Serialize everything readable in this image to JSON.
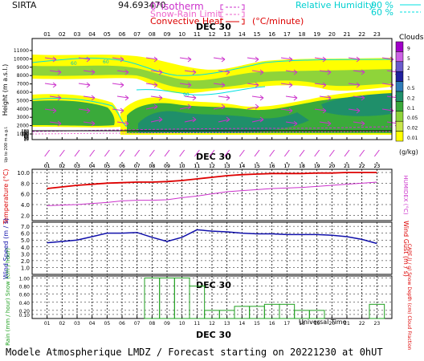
{
  "header": {
    "station": "SIRTA",
    "coords": "94.693470",
    "isotherm_label": "0°isotherm",
    "snow_rain_label": "Snow-Rain Limit",
    "convective_label": "Convective Heat",
    "convective_unit": "(°C/minute)",
    "rh_label": "Relative Humidity",
    "rh_90": "90 %",
    "rh_60": "60 %"
  },
  "footer": {
    "universal_time": "Universal Time",
    "model": "Modele Atmospherique LMDZ / Forecast starting on 20221230 at 0hUT"
  },
  "colors": {
    "temperature": "#dd0000",
    "humidex": "#cc33cc",
    "wind": "#1010aa",
    "rain": "#20a020",
    "snow": "#2020d0",
    "rh": "#00e0e0",
    "isotherm": "#cc33cc",
    "convective": "#dd0000"
  },
  "chart_data": [
    {
      "type": "heatmap",
      "date_label": "DEC 30",
      "hours": [
        "01",
        "02",
        "03",
        "04",
        "05",
        "06",
        "07",
        "08",
        "09",
        "10",
        "11",
        "12",
        "13",
        "14",
        "15",
        "16",
        "17",
        "18",
        "19",
        "20",
        "21",
        "22",
        "23"
      ],
      "ylabel": "Height (m a.s.l.)",
      "ylabel_low": "Up to 200 m a.g.l.",
      "yticks_upper": [
        1000,
        2000,
        3000,
        4000,
        5000,
        6000,
        7000,
        8000,
        9000,
        10000,
        11000
      ],
      "yticks_lower": [
        10,
        20,
        30,
        40,
        60,
        80,
        100,
        120,
        140,
        160,
        180
      ],
      "colorbar": {
        "title": "Clouds",
        "unit": "(g/kg)",
        "levels": [
          "9",
          "5",
          "2",
          "1",
          "0.5",
          "0.2",
          "0.1",
          "0.05",
          "0.02",
          "0.01"
        ],
        "colors": [
          "#a000c8",
          "#cc60e6",
          "#6a5acd",
          "#2020a0",
          "#2e7bb8",
          "#1f8f6a",
          "#3aaa3a",
          "#8fd43a",
          "#c8e64a",
          "#ffff00"
        ]
      },
      "rh_contour_labels": [
        "60",
        "60",
        "90"
      ]
    },
    {
      "type": "line",
      "date_label": "DEC 30",
      "ylabel": "Temperature (°C)",
      "ylabel_right": "HUMIDEX (°C)",
      "yticks": [
        "2.0",
        "4.0",
        "6.0",
        "8.0",
        "10.0"
      ],
      "ylim": [
        1.0,
        10.6
      ],
      "x": [
        1,
        2,
        3,
        4,
        5,
        6,
        7,
        8,
        9,
        10,
        11,
        12,
        13,
        14,
        15,
        16,
        17,
        18,
        19,
        20,
        21,
        22,
        23
      ],
      "series": [
        {
          "name": "Temperature",
          "values": [
            7.0,
            7.3,
            7.6,
            7.8,
            8.0,
            8.1,
            8.2,
            8.2,
            8.3,
            8.5,
            8.8,
            9.1,
            9.4,
            9.6,
            9.7,
            9.8,
            9.8,
            9.8,
            9.9,
            9.9,
            10.0,
            10.0,
            10.0
          ]
        },
        {
          "name": "HUMIDEX",
          "values": [
            3.8,
            3.9,
            4.0,
            4.2,
            4.4,
            4.7,
            4.8,
            4.8,
            4.9,
            5.3,
            5.6,
            6.0,
            6.4,
            6.6,
            6.8,
            7.0,
            7.1,
            7.2,
            7.4,
            7.6,
            7.8,
            8.0,
            8.2
          ]
        }
      ]
    },
    {
      "type": "line",
      "ylabel": "Wind Speed (m / s)",
      "ylabel_right": "Wind Gust (m / s)",
      "yticks": [
        "1.0",
        "2.0",
        "3.0",
        "4.0",
        "5.0",
        "6.0",
        "7.0"
      ],
      "ylim": [
        0,
        7.6
      ],
      "x": [
        1,
        2,
        3,
        4,
        5,
        6,
        7,
        8,
        9,
        10,
        11,
        12,
        13,
        14,
        15,
        16,
        17,
        18,
        19,
        20,
        21,
        22,
        23
      ],
      "series": [
        {
          "name": "Wind Speed",
          "values": [
            4.6,
            4.8,
            5.0,
            5.5,
            6.0,
            6.0,
            6.1,
            5.4,
            4.8,
            5.4,
            6.5,
            6.3,
            6.2,
            6.0,
            5.9,
            5.9,
            5.8,
            5.8,
            5.8,
            5.7,
            5.5,
            5.1,
            4.5
          ]
        }
      ]
    },
    {
      "type": "bar",
      "date_label": "DEC 30",
      "ylabel": "Rain (mm / hour) Snow (cm / hour)",
      "ylabel_right": "CAPE (J / g) Snow Depth (cm) Cloud Fraction",
      "yticks": [
        "0.10",
        "0.20",
        "0.40",
        "0.60",
        "0.80",
        "1.00"
      ],
      "ylim": [
        0,
        1.05
      ],
      "xlabel": "Universal Time",
      "x": [
        1,
        2,
        3,
        4,
        5,
        6,
        7,
        8,
        9,
        10,
        11,
        12,
        13,
        14,
        15,
        16,
        17,
        18,
        19,
        20,
        21,
        22,
        23
      ],
      "series": [
        {
          "name": "Rain",
          "values": [
            0.0,
            0.0,
            0.0,
            0.0,
            0.0,
            0.0,
            0.0,
            1.0,
            1.0,
            1.0,
            0.8,
            0.2,
            0.2,
            0.3,
            0.3,
            0.35,
            0.35,
            0.2,
            0.2,
            0.0,
            0.0,
            0.0,
            0.35
          ]
        }
      ]
    }
  ]
}
